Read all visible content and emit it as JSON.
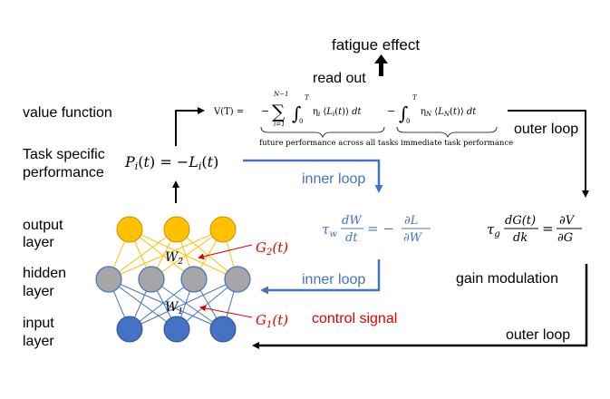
{
  "labels": {
    "fatigue_effect": "fatigue effect",
    "read_out": "read out",
    "value_function": "value function",
    "task_specific_line1": "Task specific",
    "task_specific_line2": "performance",
    "outer_loop_top": "outer loop",
    "outer_loop_bottom": "outer loop",
    "inner_loop_top": "inner loop",
    "inner_loop_bottom": "inner loop",
    "gain_modulation": "gain modulation",
    "control_signal": "control signal",
    "output_layer_1": "output",
    "output_layer_2": "layer",
    "hidden_layer_1": "hidden",
    "hidden_layer_2": "layer",
    "input_layer_1": "input",
    "input_layer_2": "layer"
  },
  "equations": {
    "value_lhs": "V(T) =",
    "future_caption": "future performance across all tasks",
    "immediate_caption": "immediate task performance",
    "sum_top": "N−1",
    "sum_bottom": "i=1",
    "int_top": "T",
    "int_bottom": "0",
    "future_integrand": "η_i ⟨L_i(t)⟩ dt",
    "immediate_integrand": "η_N ⟨L_N(t)⟩ dt",
    "performance": "P_i(t) = −L_i(t)",
    "weight_update_lhs": "τ_w dW/dt",
    "weight_update_rhs": "= − ∂L/∂W",
    "gain_update_lhs": "τ_g dG(t)/dk",
    "gain_update_rhs": "= ∂V/∂G",
    "g2": "G2(t)",
    "g1": "G1(t)",
    "w2": "W2",
    "w1": "W1"
  },
  "colors": {
    "output_node": "#ffc000",
    "hidden_node": "#a6a6a6",
    "input_node": "#4472c4",
    "inner_loop": "#4472c4",
    "control": "#e00000"
  }
}
